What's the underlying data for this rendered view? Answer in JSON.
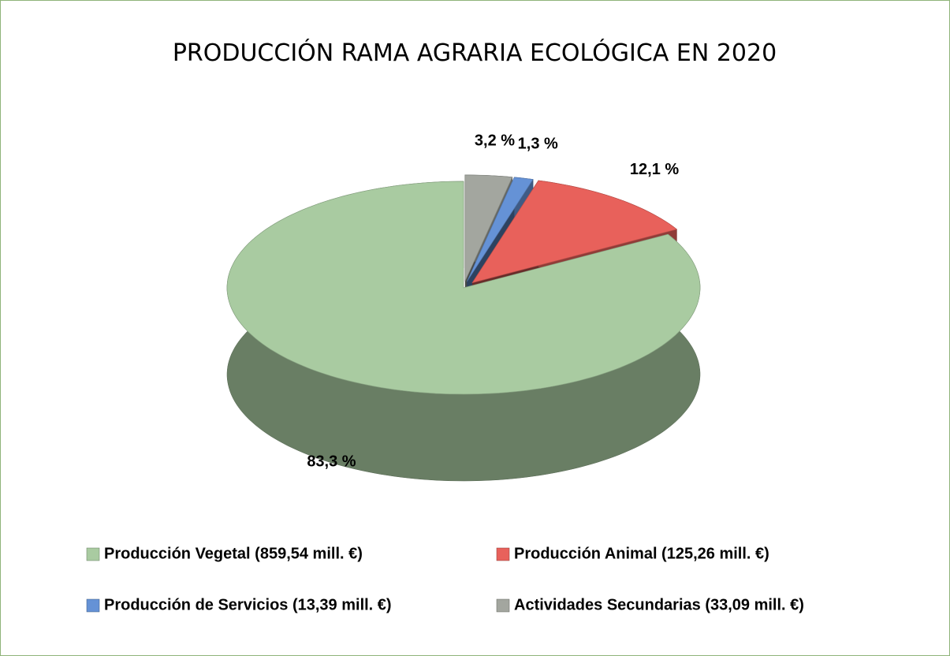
{
  "chart_data": {
    "type": "pie",
    "title": "PRODUCCIÓN RAMA AGRARIA ECOLÓGICA EN 2020",
    "categories": [
      "Producción Vegetal  (859,54 mill. €)",
      "Producción Animal  (125,26 mill. €)",
      "Producción de Servicios  (13,39 mill. €)",
      "Actividades Secundarias  (33,09 mill. €)"
    ],
    "values": [
      83.3,
      12.1,
      1.3,
      3.2
    ],
    "value_labels": [
      "83,3 %",
      "12,1 %",
      "1,3 %",
      "3,2 %"
    ],
    "colors": [
      "#a9cba1",
      "#e8615b",
      "#6592d6",
      "#a3a69f"
    ]
  }
}
